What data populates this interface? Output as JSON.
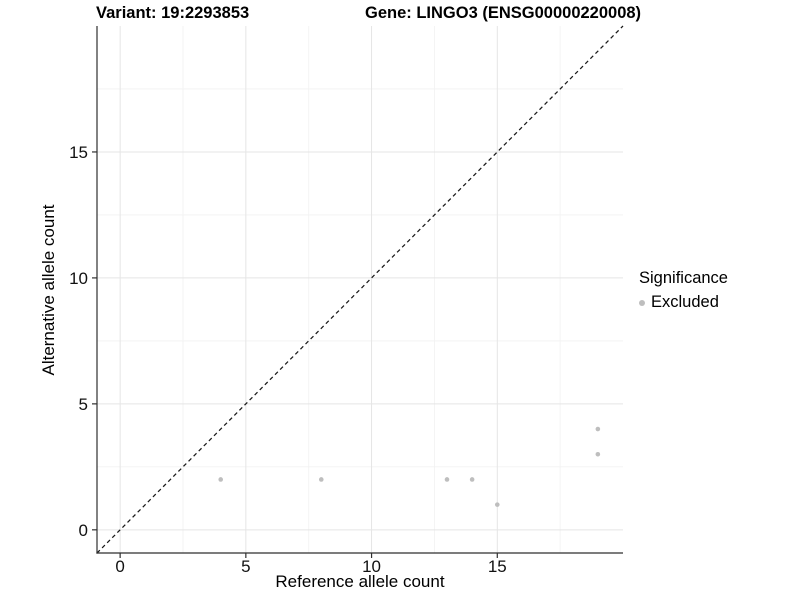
{
  "header": {
    "variant_title": "Variant: 19:2293853",
    "gene_title": "Gene: LINGO3 (ENSG00000220008)"
  },
  "chart_data": {
    "type": "scatter",
    "xlabel": "Reference allele count",
    "ylabel": "Alternative allele count",
    "xlim": [
      -0.92,
      20
    ],
    "ylim": [
      -0.92,
      20
    ],
    "x_ticks": [
      0,
      5,
      10,
      15
    ],
    "y_ticks": [
      0,
      5,
      10,
      15
    ],
    "x_minor_ticks": [
      2.5,
      7.5,
      12.5,
      17.5
    ],
    "y_minor_ticks": [
      2.5,
      7.5,
      12.5,
      17.5
    ],
    "grid": true,
    "identity_line": {
      "style": "dashed",
      "from": -0.92,
      "to": 20
    },
    "series": [
      {
        "name": "Excluded",
        "color": "#bebebe",
        "points": [
          [
            4,
            2
          ],
          [
            8,
            2
          ],
          [
            13,
            2
          ],
          [
            14,
            2
          ],
          [
            15,
            1
          ],
          [
            19,
            3
          ],
          [
            19,
            4
          ]
        ]
      }
    ],
    "legend": {
      "title": "Significance",
      "position": "right",
      "items": [
        {
          "label": "Excluded",
          "color": "#bebebe"
        }
      ]
    }
  },
  "colors": {
    "grid_major": "#e5e5e5",
    "grid_minor": "#f2f2f2",
    "axis": "#2f2f2f",
    "identity_line": "#1a1a1a",
    "tick_label": "#111111"
  }
}
